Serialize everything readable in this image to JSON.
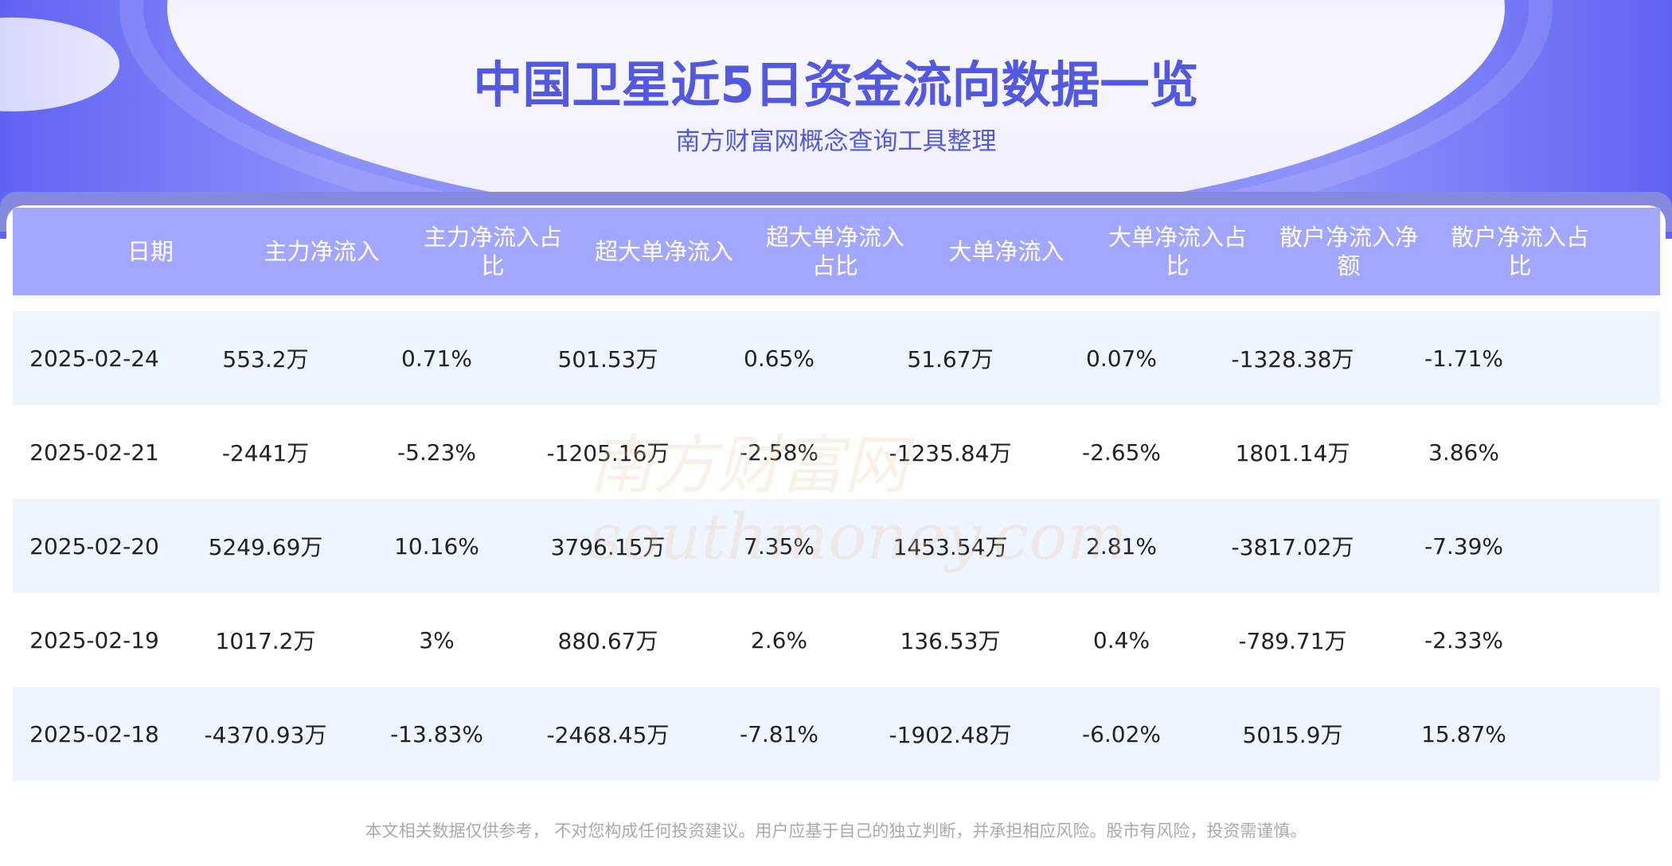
{
  "header": {
    "title": "中国卫星近5日资金流向数据一览",
    "subtitle": "南方财富网概念查询工具整理"
  },
  "table": {
    "columns": [
      "日期",
      "主力净流入",
      "主力净流入占比",
      "超大单净流入",
      "超大单净流入占比",
      "大单净流入",
      "大单净流入占比",
      "散户净流入净额",
      "散户净流入占比"
    ],
    "rows": [
      [
        "2025-02-24",
        "553.2万",
        "0.71%",
        "501.53万",
        "0.65%",
        "51.67万",
        "0.07%",
        "-1328.38万",
        "-1.71%"
      ],
      [
        "2025-02-21",
        "-2441万",
        "-5.23%",
        "-1205.16万",
        "-2.58%",
        "-1235.84万",
        "-2.65%",
        "1801.14万",
        "3.86%"
      ],
      [
        "2025-02-20",
        "5249.69万",
        "10.16%",
        "3796.15万",
        "7.35%",
        "1453.54万",
        "2.81%",
        "-3817.02万",
        "-7.39%"
      ],
      [
        "2025-02-19",
        "1017.2万",
        "3%",
        "880.67万",
        "2.6%",
        "136.53万",
        "0.4%",
        "-789.71万",
        "-2.33%"
      ],
      [
        "2025-02-18",
        "-4370.93万",
        "-13.83%",
        "-2468.45万",
        "-7.81%",
        "-1902.48万",
        "-6.02%",
        "5015.9万",
        "15.87%"
      ]
    ]
  },
  "watermark": {
    "cn": "南方财富网",
    "en": "southmoney.com"
  },
  "footer": {
    "disclaimer": "本文相关数据仅供参考， 不对您构成任何投资建议。用户应基于自己的独立判断，并承担相应风险。股市有风险，投资需谨慎。"
  },
  "colors": {
    "accent": "#5458e0",
    "header_bg": "#a3a6fe",
    "row_alt": "#eef5fe"
  }
}
